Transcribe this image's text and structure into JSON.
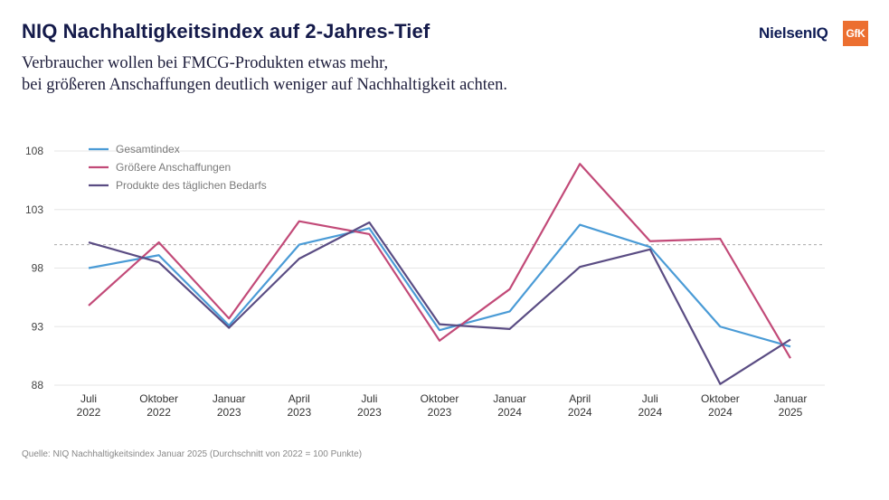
{
  "header": {
    "title": "NIQ Nachhaltigkeitsindex auf 2-Jahres-Tief",
    "subtitle_line1": "Verbraucher wollen bei FMCG-Produkten etwas mehr,",
    "subtitle_line2": "bei größeren Anschaffungen deutlich weniger auf Nachhaltigkeit achten."
  },
  "logos": {
    "niq": "NielsenIQ",
    "gfk": "GfK"
  },
  "source": "Quelle: NIQ Nachhaltigkeitsindex Januar 2025 (Durchschnitt von 2022 = 100 Punkte)",
  "colors": {
    "gesamt": "#4a9bd6",
    "groessere": "#c24a78",
    "produkte": "#5a4c83",
    "grid": "#e6e6e6",
    "reference": "#aaaaaa"
  },
  "chart_data": {
    "type": "line",
    "categories": [
      [
        "Juli",
        "2022"
      ],
      [
        "Oktober",
        "2022"
      ],
      [
        "Januar",
        "2023"
      ],
      [
        "April",
        "2023"
      ],
      [
        "Juli",
        "2023"
      ],
      [
        "Oktober",
        "2023"
      ],
      [
        "Januar",
        "2024"
      ],
      [
        "April",
        "2024"
      ],
      [
        "Juli",
        "2024"
      ],
      [
        "Oktober",
        "2024"
      ],
      [
        "Januar",
        "2025"
      ]
    ],
    "y_ticks": [
      88,
      93,
      98,
      103,
      108
    ],
    "ylim": [
      88,
      108
    ],
    "reference_line": 100,
    "grid": true,
    "legend_position": "top-left",
    "series": [
      {
        "name": "Gesamtindex",
        "color_key": "gesamt",
        "values": [
          98.0,
          99.1,
          93.1,
          100.0,
          101.4,
          92.7,
          94.3,
          101.7,
          99.8,
          93.0,
          91.3
        ]
      },
      {
        "name": "Größere Anschaffungen",
        "color_key": "groessere",
        "values": [
          94.8,
          100.2,
          93.7,
          102.0,
          100.9,
          91.8,
          96.2,
          106.9,
          100.3,
          100.5,
          90.3
        ]
      },
      {
        "name": "Produkte des täglichen Bedarfs",
        "color_key": "produkte",
        "values": [
          100.2,
          98.5,
          92.9,
          98.8,
          101.9,
          93.2,
          92.8,
          98.1,
          99.6,
          88.1,
          91.9
        ]
      }
    ]
  }
}
